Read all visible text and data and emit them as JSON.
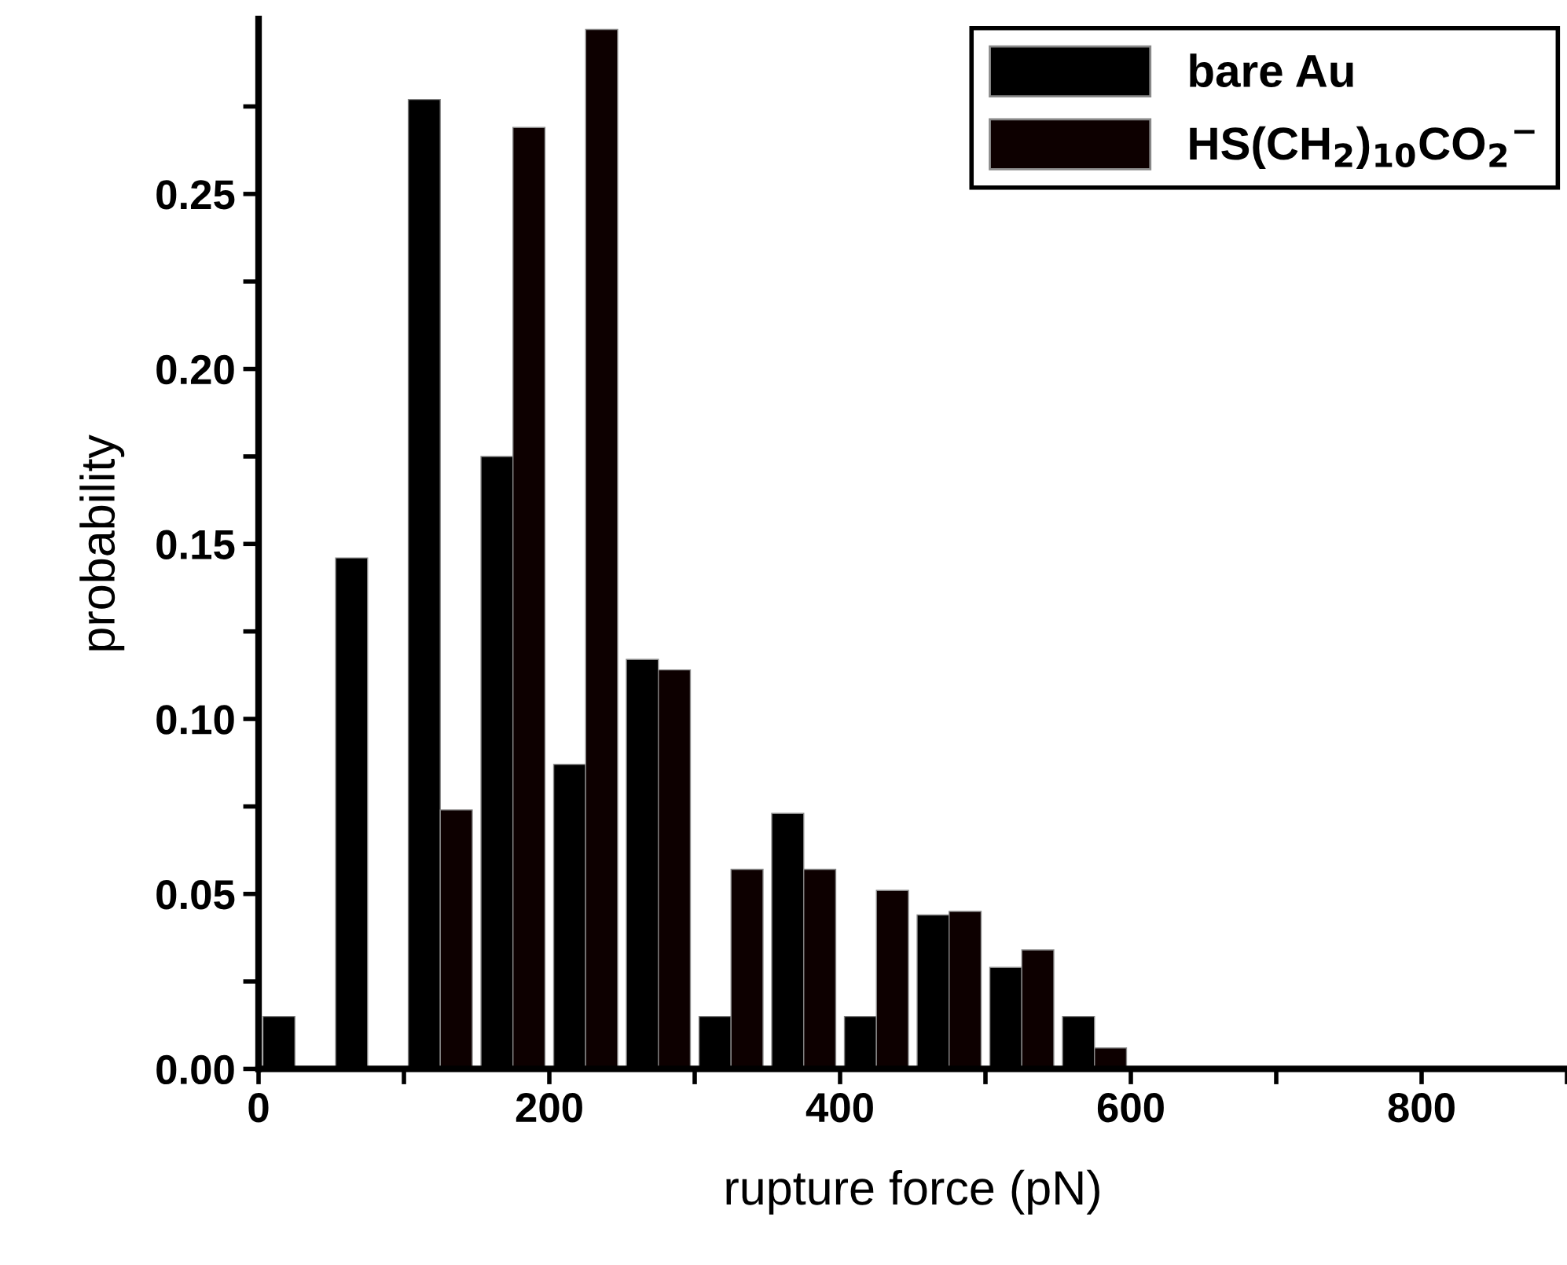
{
  "chart_data": {
    "type": "bar",
    "xlabel": "rupture force (pN)",
    "ylabel": "probability",
    "series": [
      {
        "name": "bare Au",
        "color": "#000000",
        "x": [
          14,
          64,
          114,
          164,
          214,
          264,
          314,
          364,
          414,
          464,
          514,
          564
        ],
        "values": [
          0.015,
          0.146,
          0.277,
          0.175,
          0.087,
          0.117,
          0.015,
          0.073,
          0.015,
          0.044,
          0.029,
          0.015
        ]
      },
      {
        "name": "HS(CH$_{2}$)$_{10}$CO$_{2}$$^{−}$",
        "color": "#0d0000",
        "x": [
          136,
          186,
          236,
          286,
          336,
          386,
          436,
          486,
          536,
          586
        ],
        "values": [
          0.074,
          0.269,
          0.297,
          0.114,
          0.057,
          0.057,
          0.051,
          0.045,
          0.034,
          0.006
        ]
      }
    ],
    "xlim": [
      0,
      900
    ],
    "ylim": [
      0,
      0.3
    ],
    "xticks": [
      0,
      {
        "value": 100,
        "label": null
      },
      200,
      {
        "value": 300,
        "label": null
      },
      400,
      {
        "value": 500,
        "label": null
      },
      600,
      {
        "value": 700,
        "label": null
      },
      800,
      {
        "value": 900,
        "label": null
      }
    ],
    "yticks": [
      {
        "value": 0,
        "label": "0.00"
      },
      {
        "value": 0.025,
        "label": null
      },
      {
        "value": 0.05,
        "label": "0.05"
      },
      {
        "value": 0.075,
        "label": null
      },
      {
        "value": 0.1,
        "label": "0.10"
      },
      {
        "value": 0.125,
        "label": null
      },
      {
        "value": 0.15,
        "label": "0.15"
      },
      {
        "value": 0.175,
        "label": null
      },
      {
        "value": 0.2,
        "label": "0.20"
      },
      {
        "value": 0.225,
        "label": null
      },
      {
        "value": 0.25,
        "label": "0.25"
      },
      {
        "value": 0.275,
        "label": null
      }
    ],
    "legend": "top right",
    "grid": false
  }
}
